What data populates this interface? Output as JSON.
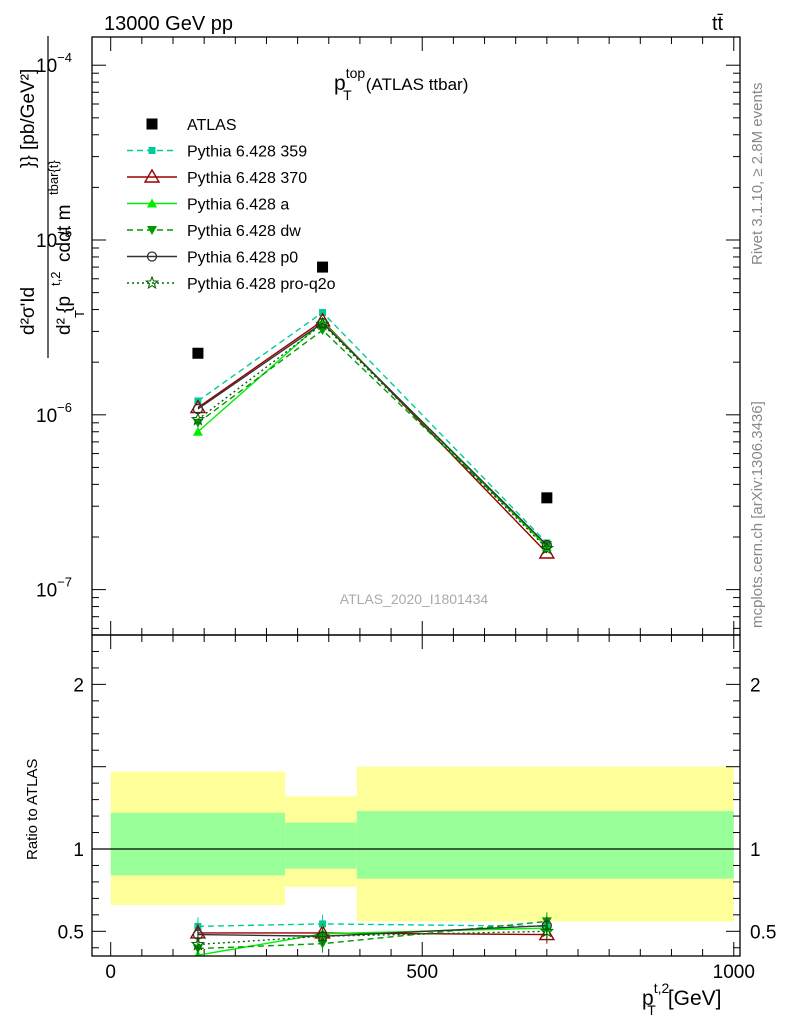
{
  "header": {
    "energy_label": "13000 GeV pp",
    "process_label": "tt̄"
  },
  "side_labels": {
    "rivet": "Rivet 3.1.10, ≥ 2.8M events",
    "source": "mcplots.cern.ch [arXiv:1306.3436]"
  },
  "colors": {
    "band_yellow": "#ffff99",
    "band_green": "#99ff99"
  },
  "chart_data": [
    {
      "type": "scatter",
      "title": "p_T^top (ATLAS ttbar)",
      "title_main": "p",
      "title_sup": "top",
      "title_sub": "T",
      "title_rest": "(ATLAS ttbar)",
      "ylabel": "d²σ'Id / d² {p_T^t,2 cdαt m^tbar{t}} [pb/GeV²]",
      "watermark": "ATLAS_2020_I1801434",
      "yscale": "log",
      "xlim": [
        -30,
        1010
      ],
      "ylim": [
        5.5e-08,
        0.000145
      ],
      "y_tick_labels": [
        "10^-7",
        "10^-6",
        "10^-5",
        "10^-4"
      ],
      "legend_position": "top-left",
      "x": [
        140,
        340,
        700
      ],
      "series": [
        {
          "name": "ATLAS",
          "values": [
            2.25e-06,
            7e-06,
            3.35e-07
          ],
          "color": "#000000",
          "marker": "square",
          "line": "none"
        },
        {
          "name": "Pythia 6.428 359",
          "values": [
            1.2e-06,
            3.85e-06,
            1.85e-07
          ],
          "color": "#00cc99",
          "marker": "small-square",
          "line": "dashed"
        },
        {
          "name": "Pythia 6.428 370",
          "values": [
            1.1e-06,
            3.45e-06,
            1.62e-07
          ],
          "color": "#990000",
          "marker": "open-triangle",
          "line": "solid"
        },
        {
          "name": "Pythia 6.428 a",
          "values": [
            8e-07,
            3.4e-06,
            1.75e-07
          ],
          "color": "#00ee00",
          "marker": "triangle",
          "line": "solid"
        },
        {
          "name": "Pythia 6.428 dw",
          "values": [
            9e-07,
            3.05e-06,
            1.8e-07
          ],
          "color": "#009900",
          "marker": "down-triangle",
          "line": "dashed"
        },
        {
          "name": "Pythia 6.428 p0",
          "values": [
            1.08e-06,
            3.35e-06,
            1.8e-07
          ],
          "color": "#333333",
          "marker": "open-circle",
          "line": "solid"
        },
        {
          "name": "Pythia 6.428 pro-q2o",
          "values": [
            9.4e-07,
            3.3e-06,
            1.72e-07
          ],
          "color": "#006600",
          "marker": "star",
          "line": "dotted"
        }
      ]
    },
    {
      "type": "scatter",
      "ylabel": "Ratio to ATLAS",
      "xlabel": "p_T^t,2 [GeV]",
      "xlabel_main": "p",
      "xlabel_sup": "t,2",
      "xlabel_sub": "T",
      "xlabel_rest": "[GeV]",
      "xlim": [
        -30,
        1010
      ],
      "ylim": [
        0.35,
        2.3
      ],
      "x_tick_labels": [
        "0",
        "500",
        "1000"
      ],
      "y_tick_labels": [
        "0.5",
        "1",
        "2"
      ],
      "bands": [
        {
          "x0": 0,
          "x1": 280,
          "yellow": [
            0.66,
            1.47
          ],
          "green": [
            0.84,
            1.22
          ]
        },
        {
          "x0": 280,
          "x1": 395,
          "yellow": [
            0.77,
            1.32
          ],
          "green": [
            0.88,
            1.16
          ]
        },
        {
          "x0": 395,
          "x1": 1000,
          "yellow": [
            0.56,
            1.5
          ],
          "green": [
            0.82,
            1.23
          ]
        }
      ],
      "x": [
        140,
        340,
        700
      ],
      "series": [
        {
          "name": "Pythia 6.428 359",
          "values": [
            0.53,
            0.545,
            0.53
          ],
          "color": "#00cc99",
          "marker": "small-square",
          "line": "dashed"
        },
        {
          "name": "Pythia 6.428 370",
          "values": [
            0.49,
            0.49,
            0.48
          ],
          "color": "#990000",
          "marker": "open-triangle",
          "line": "solid"
        },
        {
          "name": "Pythia 6.428 a",
          "values": [
            0.355,
            0.485,
            0.52
          ],
          "color": "#00ee00",
          "marker": "triangle",
          "line": "solid"
        },
        {
          "name": "Pythia 6.428 dw",
          "values": [
            0.395,
            0.425,
            0.56
          ],
          "color": "#009900",
          "marker": "down-triangle",
          "line": "dashed"
        },
        {
          "name": "Pythia 6.428 p0",
          "values": [
            0.48,
            0.47,
            0.535
          ],
          "color": "#333333",
          "marker": "open-circle",
          "line": "solid"
        },
        {
          "name": "Pythia 6.428 pro-q2o",
          "values": [
            0.42,
            0.47,
            0.5
          ],
          "color": "#006600",
          "marker": "star",
          "line": "dotted"
        }
      ]
    }
  ]
}
